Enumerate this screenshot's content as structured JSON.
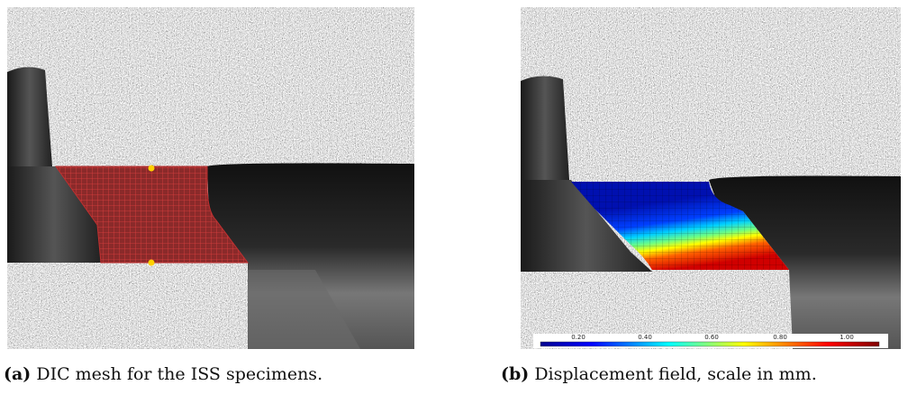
{
  "panels": [
    {
      "label": "(a)",
      "caption": "DIC mesh for the ISS specimens."
    },
    {
      "label": "(b)",
      "caption": "Displacement field, scale in mm.",
      "colorbar": {
        "ticks": [
          "0.20",
          "0.40",
          "0.60",
          "0.80",
          "1.00"
        ]
      }
    }
  ]
}
